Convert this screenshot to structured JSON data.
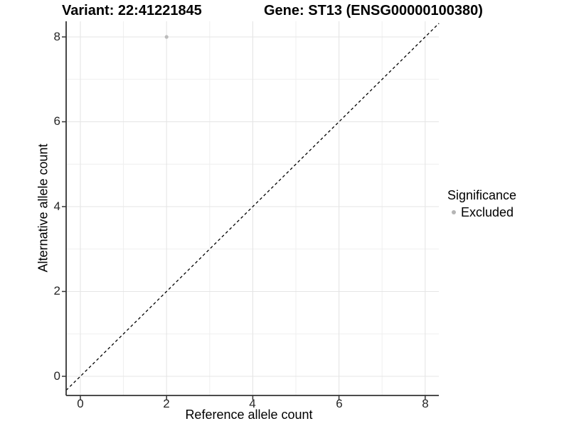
{
  "header": {
    "variant_title": "Variant: 22:41221845",
    "gene_title": "Gene: ST13 (ENSG00000100380)"
  },
  "axes": {
    "x": {
      "label": "Reference allele count",
      "tick_labels": [
        "0",
        "2",
        "4",
        "6",
        "8"
      ]
    },
    "y": {
      "label": "Alternative allele count",
      "tick_labels": [
        "8",
        "6",
        "4",
        "2",
        "0"
      ]
    }
  },
  "legend": {
    "title": "Significance",
    "items": [
      {
        "label": "Excluded",
        "color": "#b5b5b5"
      }
    ]
  },
  "colors": {
    "point_excluded": "#bcbcbc",
    "grid_major": "#e5e5e5",
    "grid_minor": "#efefef",
    "axis": "#333333",
    "identity_line": "#000000",
    "background": "#ffffff"
  },
  "chart_data": {
    "type": "scatter",
    "title": "Variant: 22:41221845   Gene: ST13 (ENSG00000100380)",
    "xlabel": "Reference allele count",
    "ylabel": "Alternative allele count",
    "xlim": [
      -0.33,
      8.32
    ],
    "ylim": [
      -0.45,
      8.37
    ],
    "x_ticks": [
      0,
      2,
      4,
      6,
      8
    ],
    "y_ticks": [
      0,
      2,
      4,
      6,
      8
    ],
    "grid": true,
    "legend_position": "right",
    "series": [
      {
        "name": "Excluded",
        "color": "#bcbcbc",
        "points": [
          {
            "x": 2,
            "y": 8
          }
        ]
      }
    ],
    "reference_line": {
      "type": "identity y=x",
      "style": "dashed",
      "color": "#000000"
    }
  }
}
